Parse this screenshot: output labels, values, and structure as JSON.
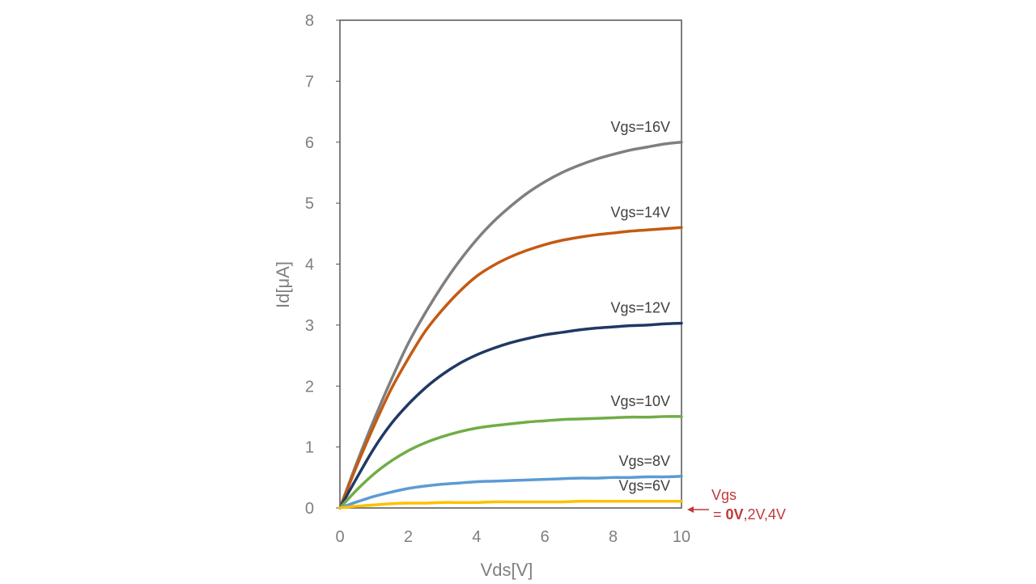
{
  "chart_data": {
    "type": "line",
    "xlabel": "Vds[V]",
    "ylabel": "Id[μA]",
    "xlim": [
      0,
      10
    ],
    "ylim": [
      0,
      8
    ],
    "x_ticks": [
      0,
      2,
      4,
      6,
      8,
      10
    ],
    "y_ticks": [
      0,
      1,
      2,
      3,
      4,
      5,
      6,
      7,
      8
    ],
    "grid": false,
    "series": [
      {
        "name": "Vgs=16V",
        "color": "#7f7f7f",
        "x": [
          0,
          0.5,
          1,
          1.5,
          2,
          2.5,
          3,
          3.5,
          4,
          4.5,
          5,
          5.5,
          6,
          6.5,
          7,
          7.5,
          8,
          8.5,
          9,
          9.5,
          10
        ],
        "y": [
          0,
          0.75,
          1.45,
          2.1,
          2.7,
          3.2,
          3.65,
          4.05,
          4.4,
          4.7,
          4.95,
          5.17,
          5.35,
          5.5,
          5.62,
          5.72,
          5.8,
          5.87,
          5.92,
          5.97,
          6.0
        ]
      },
      {
        "name": "Vgs=14V",
        "color": "#c55a11",
        "x": [
          0,
          0.5,
          1,
          1.5,
          2,
          2.5,
          3,
          3.5,
          4,
          4.5,
          5,
          5.5,
          6,
          6.5,
          7,
          7.5,
          8,
          8.5,
          9,
          9.5,
          10
        ],
        "y": [
          0,
          0.7,
          1.35,
          1.95,
          2.45,
          2.9,
          3.25,
          3.55,
          3.8,
          3.98,
          4.12,
          4.23,
          4.32,
          4.39,
          4.44,
          4.48,
          4.51,
          4.54,
          4.56,
          4.58,
          4.6
        ]
      },
      {
        "name": "Vgs=12V",
        "color": "#203864",
        "x": [
          0,
          0.5,
          1,
          1.5,
          2,
          2.5,
          3,
          3.5,
          4,
          4.5,
          5,
          5.5,
          6,
          6.5,
          7,
          7.5,
          8,
          8.5,
          9,
          9.5,
          10
        ],
        "y": [
          0,
          0.5,
          0.98,
          1.38,
          1.7,
          1.97,
          2.19,
          2.37,
          2.51,
          2.62,
          2.71,
          2.78,
          2.84,
          2.88,
          2.92,
          2.95,
          2.97,
          2.99,
          3.0,
          3.02,
          3.03
        ]
      },
      {
        "name": "Vgs=10V",
        "color": "#70ad47",
        "x": [
          0,
          0.5,
          1,
          1.5,
          2,
          2.5,
          3,
          3.5,
          4,
          4.5,
          5,
          5.5,
          6,
          6.5,
          7,
          7.5,
          8,
          8.5,
          9,
          9.5,
          10
        ],
        "y": [
          0,
          0.3,
          0.56,
          0.77,
          0.94,
          1.07,
          1.17,
          1.25,
          1.31,
          1.35,
          1.38,
          1.41,
          1.43,
          1.45,
          1.46,
          1.47,
          1.48,
          1.49,
          1.49,
          1.5,
          1.5
        ]
      },
      {
        "name": "Vgs=8V",
        "color": "#5b9bd5",
        "x": [
          0,
          0.5,
          1,
          1.5,
          2,
          2.5,
          3,
          3.5,
          4,
          4.5,
          5,
          5.5,
          6,
          6.5,
          7,
          7.5,
          8,
          8.5,
          9,
          9.5,
          10
        ],
        "y": [
          0,
          0.1,
          0.19,
          0.26,
          0.32,
          0.36,
          0.39,
          0.41,
          0.43,
          0.44,
          0.45,
          0.46,
          0.47,
          0.48,
          0.49,
          0.49,
          0.5,
          0.5,
          0.51,
          0.51,
          0.52
        ]
      },
      {
        "name": "Vgs=6V",
        "color": "#ffc000",
        "x": [
          0,
          0.5,
          1,
          1.5,
          2,
          2.5,
          3,
          3.5,
          4,
          4.5,
          5,
          5.5,
          6,
          6.5,
          7,
          7.5,
          8,
          8.5,
          9,
          9.5,
          10
        ],
        "y": [
          0,
          0.03,
          0.05,
          0.07,
          0.08,
          0.08,
          0.09,
          0.09,
          0.09,
          0.1,
          0.1,
          0.1,
          0.1,
          0.1,
          0.11,
          0.11,
          0.11,
          0.11,
          0.11,
          0.11,
          0.11
        ]
      }
    ],
    "annotation": {
      "line1": "Vgs",
      "line2_prefix": "= ",
      "line2_bold": "0V",
      "line2_suffix": ",2V,4V",
      "color": "#c0393b"
    }
  }
}
